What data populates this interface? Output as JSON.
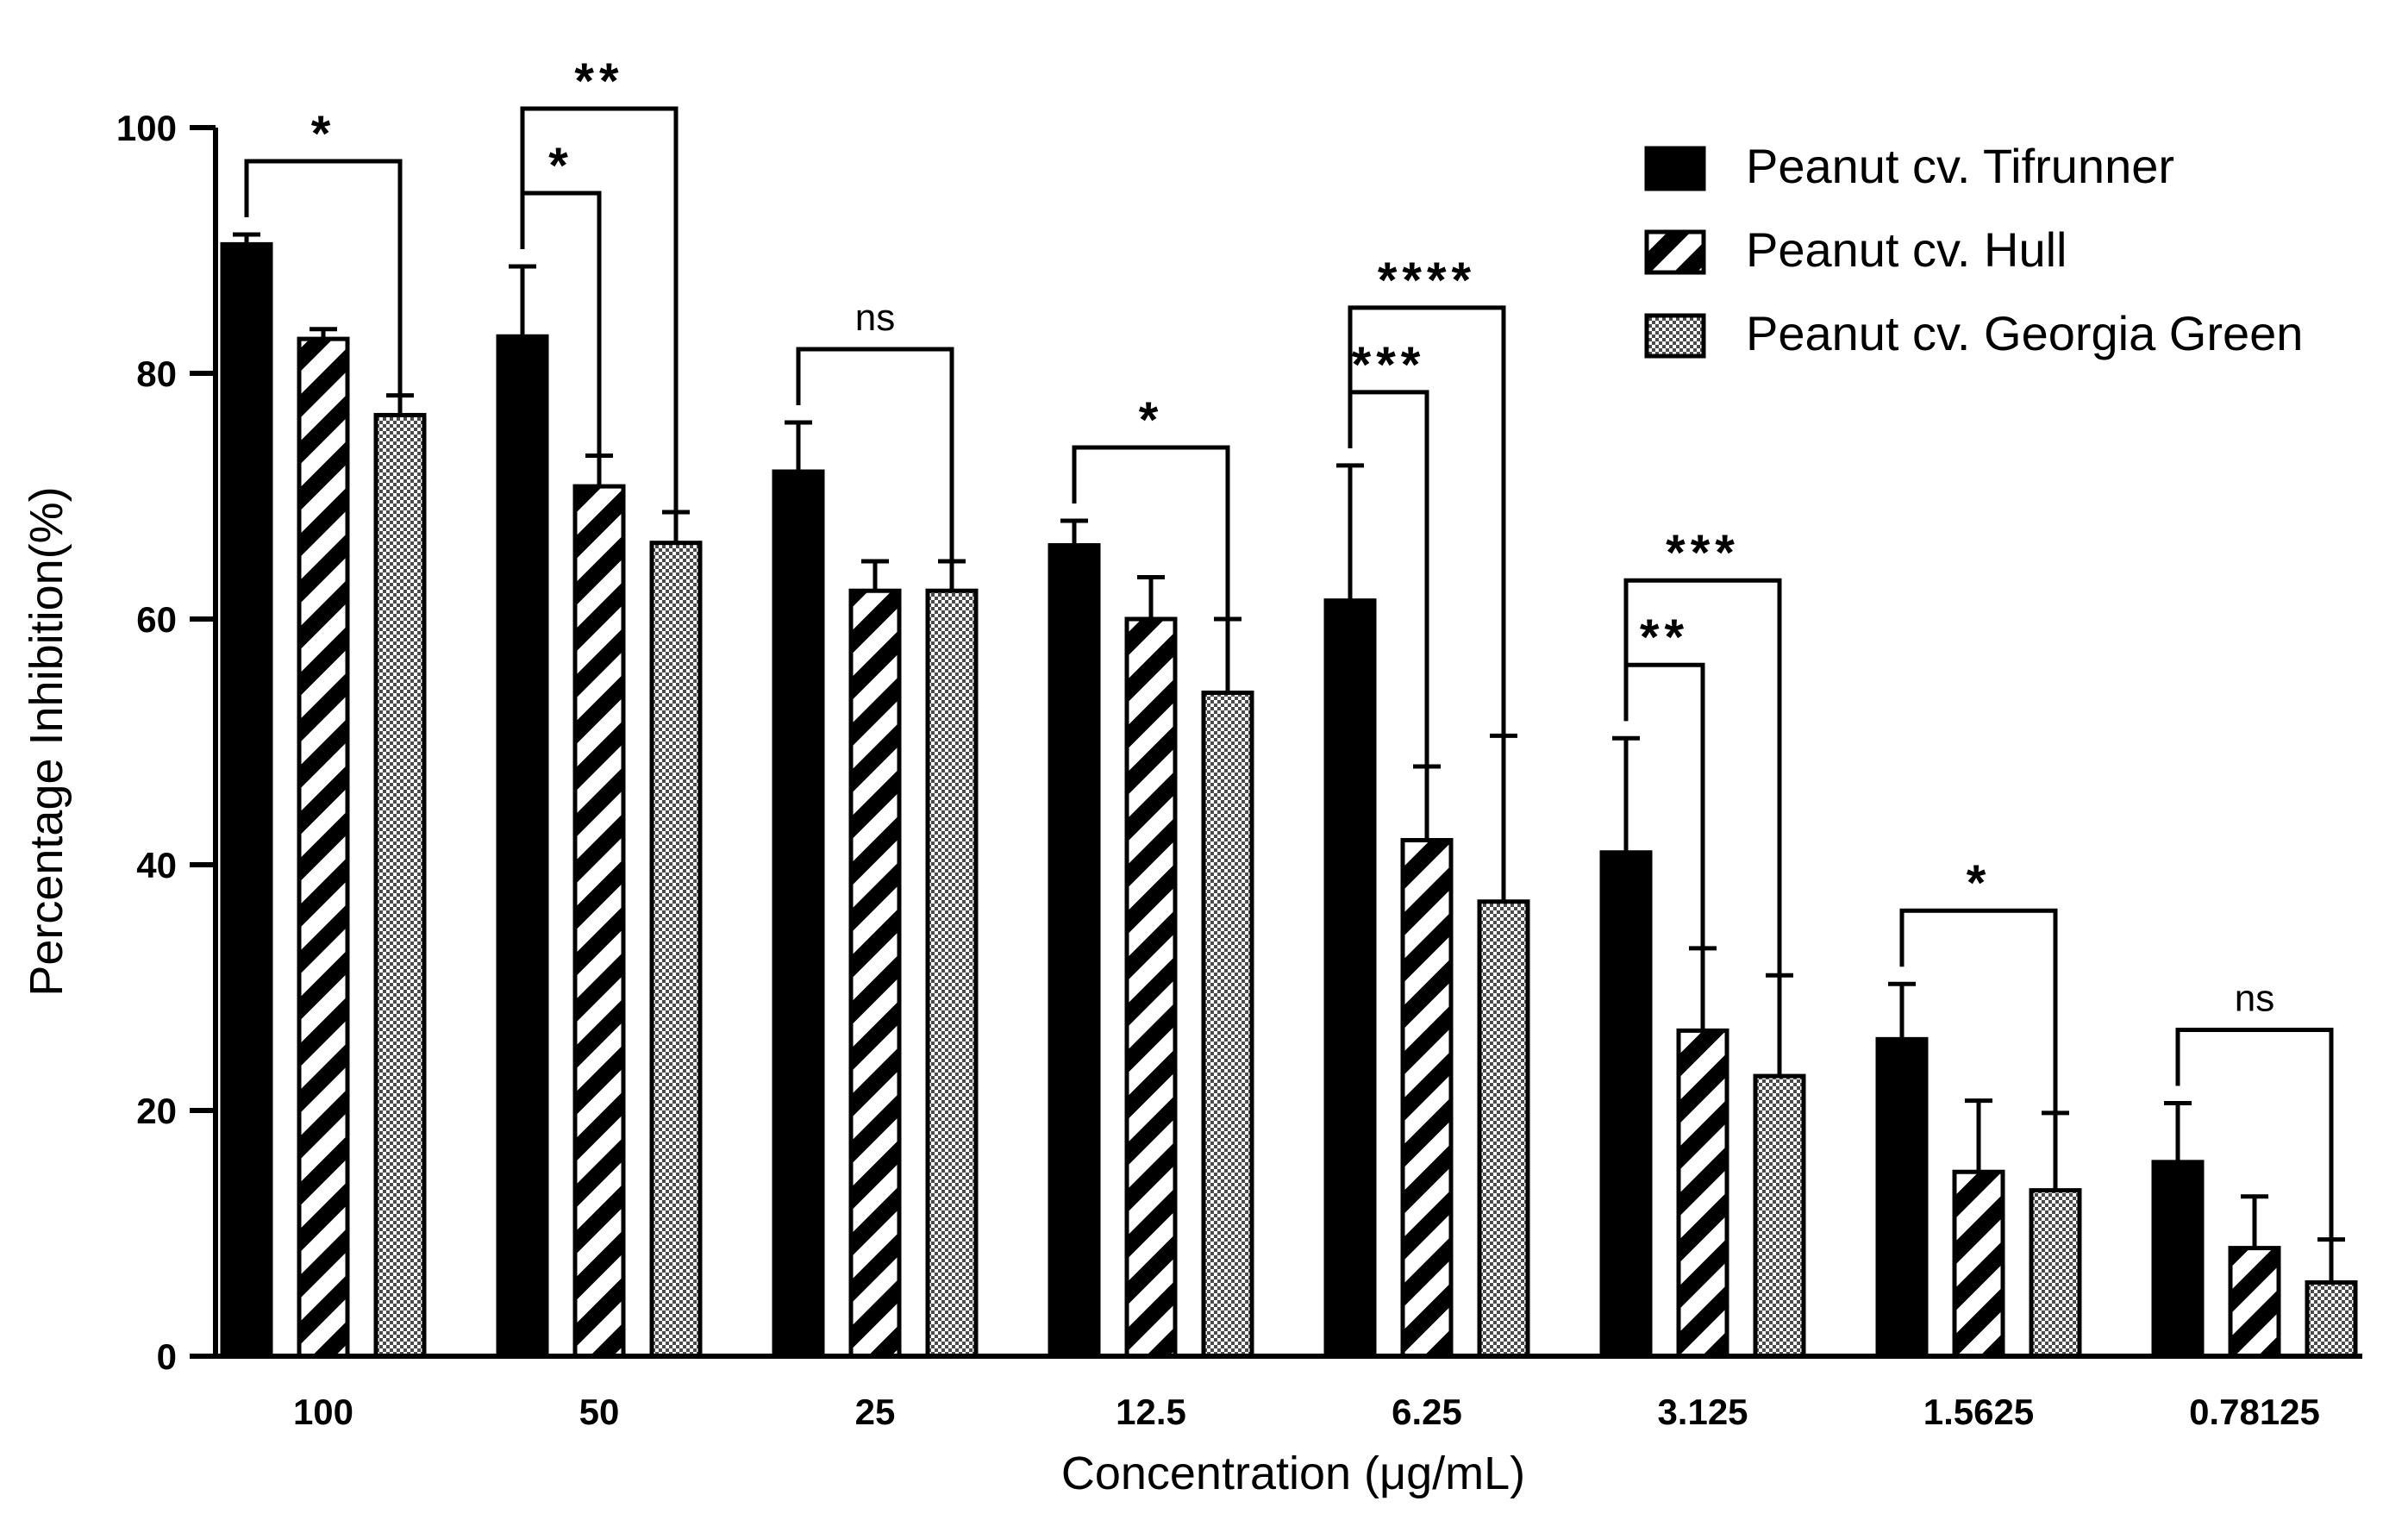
{
  "chart_data": {
    "type": "bar",
    "title": "",
    "xlabel": "Concentration (μg/mL)",
    "ylabel": "Percentage Inhibition(%)",
    "ylim": [
      0,
      100
    ],
    "yticks": [
      "0",
      "20",
      "40",
      "60",
      "80",
      "100"
    ],
    "categories": [
      "100",
      "50",
      "25",
      "12.5",
      "6.25",
      "3.125",
      "1.5625",
      "0.78125"
    ],
    "series": [
      {
        "name": "Peanut cv. Tifrunner",
        "fill": "solid",
        "values": [
          90.5,
          83.0,
          72.0,
          66.0,
          61.5,
          41.0,
          25.8,
          15.8
        ],
        "errors": [
          0.8,
          5.7,
          4.0,
          2.0,
          11.0,
          9.3,
          4.5,
          4.8
        ]
      },
      {
        "name": "Peanut cv. Hull",
        "fill": "hatched",
        "values": [
          82.8,
          70.8,
          62.3,
          60.0,
          42.0,
          26.5,
          15.0,
          8.8
        ],
        "errors": [
          0.8,
          2.5,
          2.4,
          3.4,
          6.0,
          6.7,
          5.8,
          4.2
        ]
      },
      {
        "name": "Peanut cv. Georgia Green",
        "fill": "dotted",
        "values": [
          76.6,
          66.2,
          62.3,
          54.0,
          37.0,
          22.8,
          13.5,
          6.0
        ],
        "errors": [
          1.6,
          2.5,
          2.4,
          6.0,
          13.5,
          8.2,
          6.3,
          3.5
        ]
      }
    ],
    "significance": [
      {
        "group": 0,
        "from": 0,
        "to": 2,
        "level": 1,
        "label": "*"
      },
      {
        "group": 1,
        "from": 0,
        "to": 1,
        "level": 1,
        "label": "*"
      },
      {
        "group": 1,
        "from": 0,
        "to": 2,
        "level": 2,
        "label": "**"
      },
      {
        "group": 2,
        "from": 0,
        "to": 2,
        "level": 1,
        "label": "ns"
      },
      {
        "group": 3,
        "from": 0,
        "to": 2,
        "level": 1,
        "label": "*"
      },
      {
        "group": 4,
        "from": 0,
        "to": 1,
        "level": 1,
        "label": "***"
      },
      {
        "group": 4,
        "from": 0,
        "to": 2,
        "level": 2,
        "label": "****"
      },
      {
        "group": 5,
        "from": 0,
        "to": 1,
        "level": 1,
        "label": "**"
      },
      {
        "group": 5,
        "from": 0,
        "to": 2,
        "level": 2,
        "label": "***"
      },
      {
        "group": 6,
        "from": 0,
        "to": 2,
        "level": 1,
        "label": "*"
      },
      {
        "group": 7,
        "from": 0,
        "to": 2,
        "level": 1,
        "label": "ns"
      }
    ],
    "legend": {
      "position": "top-right"
    },
    "grid": false
  }
}
